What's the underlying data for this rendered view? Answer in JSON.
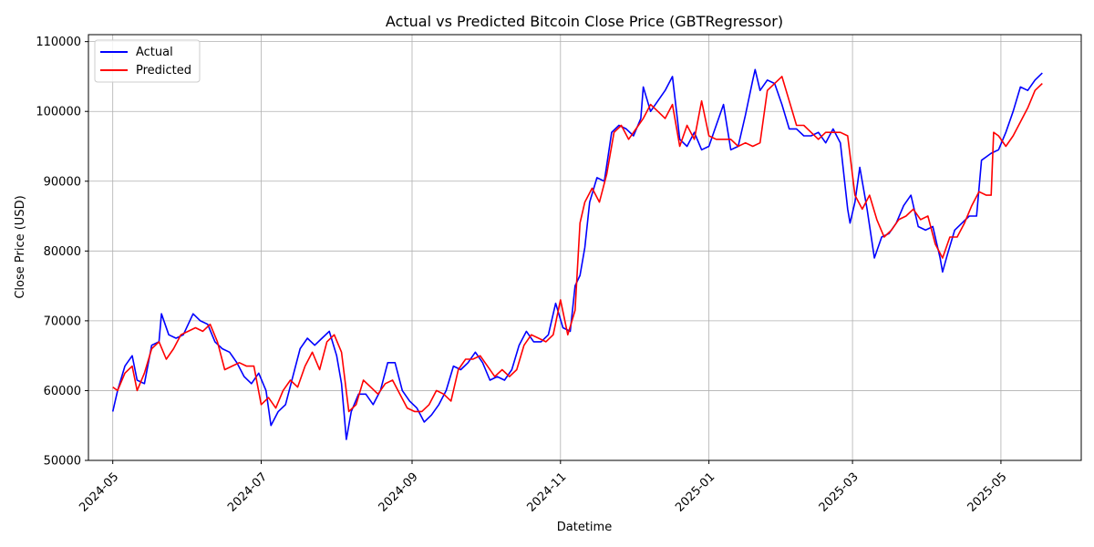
{
  "chart_data": {
    "type": "line",
    "title": "Actual vs Predicted Bitcoin Close Price (GBTRegressor)",
    "xlabel": "Datetime",
    "ylabel": "Close Price (USD)",
    "grid": true,
    "legend_position": "top-left",
    "x_type": "date",
    "xlim": [
      "2024-04-21",
      "2025-06-03"
    ],
    "ylim": [
      50000,
      111000
    ],
    "x_ticks": [
      "2024-05-01",
      "2024-07-01",
      "2024-09-01",
      "2024-11-01",
      "2025-01-01",
      "2025-03-01",
      "2025-05-01"
    ],
    "x_tick_labels": [
      "2024-05",
      "2024-07",
      "2024-09",
      "2024-11",
      "2025-01",
      "2025-03",
      "2025-05"
    ],
    "y_ticks": [
      50000,
      60000,
      70000,
      80000,
      90000,
      100000,
      110000
    ],
    "y_tick_labels": [
      "50000",
      "60000",
      "70000",
      "80000",
      "90000",
      "100000",
      "110000"
    ],
    "series": [
      {
        "name": "Actual",
        "color": "#0000ff",
        "x": [
          "2024-05-01",
          "2024-05-03",
          "2024-05-06",
          "2024-05-09",
          "2024-05-11",
          "2024-05-14",
          "2024-05-17",
          "2024-05-20",
          "2024-05-21",
          "2024-05-24",
          "2024-05-27",
          "2024-05-30",
          "2024-06-03",
          "2024-06-06",
          "2024-06-09",
          "2024-06-12",
          "2024-06-15",
          "2024-06-18",
          "2024-06-21",
          "2024-06-24",
          "2024-06-27",
          "2024-06-30",
          "2024-07-03",
          "2024-07-05",
          "2024-07-08",
          "2024-07-11",
          "2024-07-14",
          "2024-07-17",
          "2024-07-20",
          "2024-07-23",
          "2024-07-26",
          "2024-07-29",
          "2024-08-01",
          "2024-08-03",
          "2024-08-05",
          "2024-08-07",
          "2024-08-10",
          "2024-08-13",
          "2024-08-16",
          "2024-08-19",
          "2024-08-22",
          "2024-08-25",
          "2024-08-28",
          "2024-08-31",
          "2024-09-03",
          "2024-09-06",
          "2024-09-09",
          "2024-09-12",
          "2024-09-15",
          "2024-09-18",
          "2024-09-21",
          "2024-09-24",
          "2024-09-27",
          "2024-09-30",
          "2024-10-03",
          "2024-10-06",
          "2024-10-09",
          "2024-10-12",
          "2024-10-15",
          "2024-10-18",
          "2024-10-21",
          "2024-10-24",
          "2024-10-27",
          "2024-10-30",
          "2024-11-02",
          "2024-11-05",
          "2024-11-07",
          "2024-11-09",
          "2024-11-11",
          "2024-11-13",
          "2024-11-16",
          "2024-11-19",
          "2024-11-22",
          "2024-11-25",
          "2024-11-28",
          "2024-12-01",
          "2024-12-04",
          "2024-12-05",
          "2024-12-08",
          "2024-12-11",
          "2024-12-14",
          "2024-12-17",
          "2024-12-20",
          "2024-12-23",
          "2024-12-26",
          "2024-12-29",
          "2025-01-01",
          "2025-01-04",
          "2025-01-07",
          "2025-01-10",
          "2025-01-13",
          "2025-01-16",
          "2025-01-19",
          "2025-01-20",
          "2025-01-22",
          "2025-01-25",
          "2025-01-28",
          "2025-01-31",
          "2025-02-03",
          "2025-02-06",
          "2025-02-09",
          "2025-02-12",
          "2025-02-15",
          "2025-02-18",
          "2025-02-21",
          "2025-02-24",
          "2025-02-27",
          "2025-02-28",
          "2025-03-02",
          "2025-03-04",
          "2025-03-07",
          "2025-03-10",
          "2025-03-13",
          "2025-03-16",
          "2025-03-19",
          "2025-03-22",
          "2025-03-25",
          "2025-03-28",
          "2025-03-31",
          "2025-04-03",
          "2025-04-06",
          "2025-04-07",
          "2025-04-09",
          "2025-04-12",
          "2025-04-15",
          "2025-04-18",
          "2025-04-21",
          "2025-04-23",
          "2025-04-25",
          "2025-04-27",
          "2025-04-30",
          "2025-05-03",
          "2025-05-06",
          "2025-05-09",
          "2025-05-12",
          "2025-05-15",
          "2025-05-18"
        ],
        "y": [
          57000,
          60000,
          63500,
          65000,
          61500,
          61000,
          66500,
          67000,
          71000,
          68000,
          67500,
          68000,
          71000,
          70000,
          69500,
          67000,
          66000,
          65500,
          64000,
          62000,
          61000,
          62500,
          60000,
          55000,
          57000,
          58000,
          62000,
          66000,
          67500,
          66500,
          67500,
          68500,
          65000,
          61000,
          53000,
          57000,
          59500,
          59500,
          58000,
          60000,
          64000,
          64000,
          60000,
          58500,
          57500,
          55500,
          56500,
          58000,
          60000,
          63500,
          63000,
          64000,
          65500,
          64000,
          61500,
          62000,
          61500,
          63000,
          66500,
          68500,
          67000,
          67000,
          68000,
          72500,
          69000,
          68500,
          75000,
          76500,
          80500,
          87000,
          90500,
          90000,
          97000,
          98000,
          97500,
          96500,
          99000,
          103500,
          100000,
          101500,
          103000,
          105000,
          96000,
          95000,
          97000,
          94500,
          95000,
          98000,
          101000,
          94500,
          95000,
          99500,
          104500,
          106000,
          103000,
          104500,
          104000,
          101000,
          97500,
          97500,
          96500,
          96500,
          97000,
          95500,
          97500,
          95500,
          86000,
          84000,
          87000,
          92000,
          86000,
          79000,
          82000,
          82500,
          84000,
          86500,
          88000,
          83500,
          83000,
          83500,
          79000,
          77000,
          79500,
          83000,
          84000,
          85000,
          85000,
          93000,
          93500,
          94000,
          94500,
          97000,
          100000,
          103500,
          103000,
          104500,
          105500
        ]
      },
      {
        "name": "Predicted",
        "color": "#ff0000",
        "x": [
          "2024-05-01",
          "2024-05-03",
          "2024-05-06",
          "2024-05-09",
          "2024-05-11",
          "2024-05-14",
          "2024-05-17",
          "2024-05-20",
          "2024-05-23",
          "2024-05-26",
          "2024-05-29",
          "2024-06-01",
          "2024-06-04",
          "2024-06-07",
          "2024-06-10",
          "2024-06-13",
          "2024-06-16",
          "2024-06-19",
          "2024-06-22",
          "2024-06-25",
          "2024-06-28",
          "2024-07-01",
          "2024-07-04",
          "2024-07-07",
          "2024-07-10",
          "2024-07-13",
          "2024-07-16",
          "2024-07-19",
          "2024-07-22",
          "2024-07-25",
          "2024-07-28",
          "2024-07-31",
          "2024-08-03",
          "2024-08-06",
          "2024-08-09",
          "2024-08-12",
          "2024-08-15",
          "2024-08-18",
          "2024-08-21",
          "2024-08-24",
          "2024-08-27",
          "2024-08-30",
          "2024-09-02",
          "2024-09-05",
          "2024-09-08",
          "2024-09-11",
          "2024-09-14",
          "2024-09-17",
          "2024-09-20",
          "2024-09-23",
          "2024-09-26",
          "2024-09-29",
          "2024-10-02",
          "2024-10-05",
          "2024-10-08",
          "2024-10-11",
          "2024-10-14",
          "2024-10-17",
          "2024-10-20",
          "2024-10-23",
          "2024-10-26",
          "2024-10-29",
          "2024-11-01",
          "2024-11-04",
          "2024-11-07",
          "2024-11-09",
          "2024-11-11",
          "2024-11-14",
          "2024-11-17",
          "2024-11-20",
          "2024-11-23",
          "2024-11-26",
          "2024-11-29",
          "2024-12-02",
          "2024-12-05",
          "2024-12-08",
          "2024-12-11",
          "2024-12-14",
          "2024-12-17",
          "2024-12-20",
          "2024-12-23",
          "2024-12-26",
          "2024-12-29",
          "2025-01-01",
          "2025-01-04",
          "2025-01-07",
          "2025-01-10",
          "2025-01-13",
          "2025-01-16",
          "2025-01-19",
          "2025-01-22",
          "2025-01-25",
          "2025-01-28",
          "2025-01-31",
          "2025-02-03",
          "2025-02-06",
          "2025-02-09",
          "2025-02-12",
          "2025-02-15",
          "2025-02-18",
          "2025-02-21",
          "2025-02-24",
          "2025-02-27",
          "2025-03-02",
          "2025-03-05",
          "2025-03-08",
          "2025-03-11",
          "2025-03-14",
          "2025-03-17",
          "2025-03-20",
          "2025-03-23",
          "2025-03-26",
          "2025-03-29",
          "2025-04-01",
          "2025-04-04",
          "2025-04-07",
          "2025-04-10",
          "2025-04-13",
          "2025-04-16",
          "2025-04-19",
          "2025-04-22",
          "2025-04-25",
          "2025-04-27",
          "2025-04-28",
          "2025-04-30",
          "2025-05-03",
          "2025-05-06",
          "2025-05-09",
          "2025-05-12",
          "2025-05-15",
          "2025-05-18"
        ],
        "y": [
          60500,
          60000,
          62500,
          63500,
          60000,
          62500,
          66000,
          67000,
          64500,
          66000,
          68000,
          68500,
          69000,
          68500,
          69500,
          67000,
          63000,
          63500,
          64000,
          63500,
          63500,
          58000,
          59000,
          57500,
          60000,
          61500,
          60500,
          63500,
          65500,
          63000,
          67000,
          68000,
          65500,
          57000,
          58000,
          61500,
          60500,
          59500,
          61000,
          61500,
          59500,
          57500,
          57000,
          57000,
          58000,
          60000,
          59500,
          58500,
          63000,
          64500,
          64500,
          65000,
          63500,
          62000,
          63000,
          62000,
          63000,
          66500,
          68000,
          67500,
          67000,
          68000,
          73000,
          68000,
          71500,
          84000,
          87000,
          89000,
          87000,
          91000,
          97000,
          98000,
          96000,
          97500,
          99000,
          101000,
          100000,
          99000,
          101000,
          95000,
          98000,
          96000,
          101500,
          96500,
          96000,
          96000,
          96000,
          95000,
          95500,
          95000,
          95500,
          103000,
          104000,
          105000,
          101500,
          98000,
          98000,
          97000,
          96000,
          97000,
          97000,
          97000,
          96500,
          88000,
          86000,
          88000,
          84500,
          82000,
          83000,
          84500,
          85000,
          86000,
          84500,
          85000,
          81000,
          79000,
          82000,
          82000,
          84000,
          86500,
          88500,
          88000,
          88000,
          97000,
          96500,
          95000,
          96500,
          98500,
          100500,
          103000,
          104000
        ]
      }
    ]
  }
}
